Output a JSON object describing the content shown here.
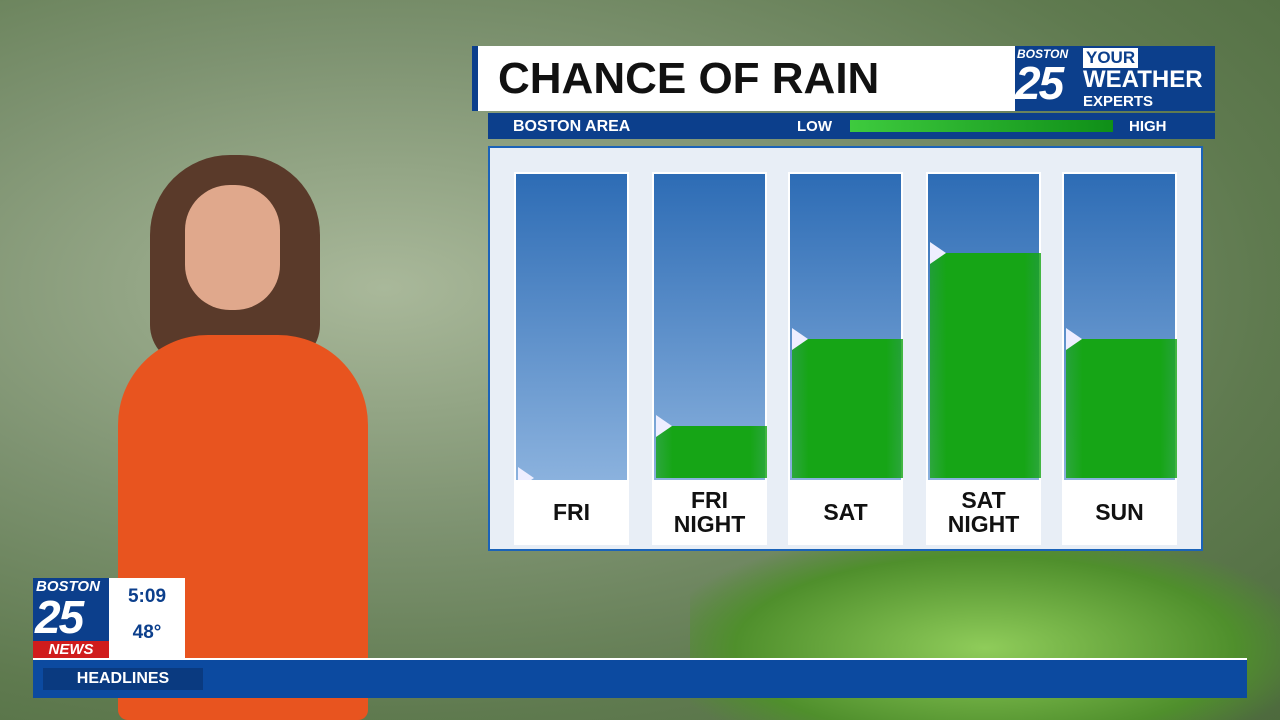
{
  "chart_data": {
    "type": "bar",
    "title": "CHANCE OF RAIN",
    "subtitle": "BOSTON AREA",
    "legend": {
      "low": "LOW",
      "high": "HIGH"
    },
    "categories": [
      "FRI",
      "FRI NIGHT",
      "SAT",
      "SAT NIGHT",
      "SUN"
    ],
    "values": [
      0,
      17,
      45,
      73,
      45
    ],
    "color": "#16a516",
    "ylim": [
      0,
      100
    ]
  },
  "weather_logo": {
    "station": "BOSTON",
    "channel": "25",
    "line1": "YOUR",
    "line2": "WEATHER",
    "line3": "EXPERTS"
  },
  "news_bug": {
    "station": "BOSTON",
    "channel": "25",
    "brand": "NEWS",
    "time": "5:09",
    "temperature": "48°"
  },
  "ticker": {
    "label": "HEADLINES"
  }
}
